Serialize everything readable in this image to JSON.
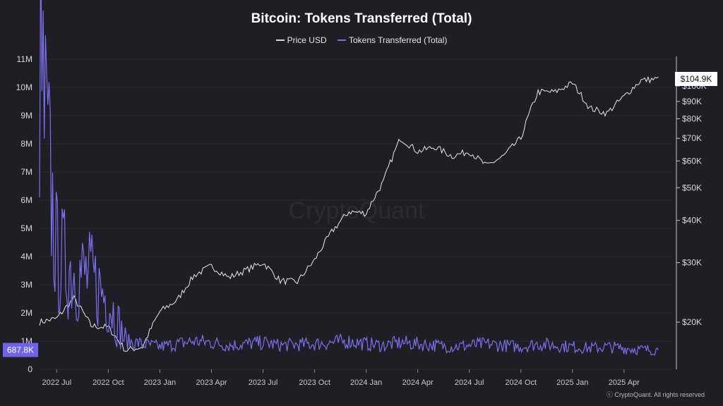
{
  "chart_data": {
    "type": "line",
    "title": "Bitcoin: Tokens Transferred (Total)",
    "legend_placement": "top-center",
    "grid": true,
    "watermark": "CryptoQuant",
    "footer": "ⓒ CryptoQuant. All rights reserved",
    "x_ticks": [
      "2022 Jul",
      "2022 Oct",
      "2023 Jan",
      "2023 Apr",
      "2023 Jul",
      "2023 Oct",
      "2024 Jan",
      "2024 Apr",
      "2024 Jul",
      "2024 Oct",
      "2025 Jan",
      "2025 Apr"
    ],
    "y_left": {
      "ticks": [
        "0",
        "1M",
        "2M",
        "3M",
        "4M",
        "5M",
        "6M",
        "7M",
        "8M",
        "9M",
        "10M",
        "11M"
      ],
      "range": [
        0,
        11000000
      ]
    },
    "y_right": {
      "scale": "log",
      "ticks": [
        "$20K",
        "$30K",
        "$40K",
        "$50K",
        "$60K",
        "$70K",
        "$80K",
        "$90K",
        "$100K"
      ],
      "range": [
        14500,
        120000
      ]
    },
    "series": [
      {
        "name": "Price USD",
        "axis": "right",
        "color": "#e8e8ec",
        "points": [
          [
            "2022 Jun",
            20000
          ],
          [
            "2022 Jul",
            20500
          ],
          [
            "2022 Aug",
            23500
          ],
          [
            "2022 Sep",
            19500
          ],
          [
            "2022 Oct",
            19300
          ],
          [
            "2022 Nov",
            16500
          ],
          [
            "2022 Dec",
            16900
          ],
          [
            "2023 Jan",
            21500
          ],
          [
            "2023 Feb",
            23200
          ],
          [
            "2023 Mar",
            27500
          ],
          [
            "2023 Apr",
            29300
          ],
          [
            "2023 May",
            27100
          ],
          [
            "2023 Jun",
            28500
          ],
          [
            "2023 Jul",
            30000
          ],
          [
            "2023 Aug",
            26500
          ],
          [
            "2023 Sep",
            26300
          ],
          [
            "2023 Oct",
            30500
          ],
          [
            "2023 Nov",
            37000
          ],
          [
            "2023 Dec",
            42500
          ],
          [
            "2024 Jan",
            42000
          ],
          [
            "2024 Feb",
            52000
          ],
          [
            "2024 Mar",
            70000
          ],
          [
            "2024 Apr",
            64000
          ],
          [
            "2024 May",
            66000
          ],
          [
            "2024 Jun",
            62000
          ],
          [
            "2024 Jul",
            64000
          ],
          [
            "2024 Aug",
            58000
          ],
          [
            "2024 Sep",
            62000
          ],
          [
            "2024 Oct",
            70000
          ],
          [
            "2024 Nov",
            96000
          ],
          [
            "2024 Dec",
            96000
          ],
          [
            "2025 Jan",
            102000
          ],
          [
            "2025 Feb",
            86000
          ],
          [
            "2025 Mar",
            83000
          ],
          [
            "2025 Apr",
            93000
          ],
          [
            "2025 May",
            104000
          ],
          [
            "2025 Jun",
            104900
          ]
        ],
        "last_value_label": "$104.9K"
      },
      {
        "name": "Tokens Transferred (Total)",
        "axis": "left",
        "color": "#7b6ff0",
        "points": [
          [
            "2022 Jun",
            10800000
          ],
          [
            "2022 Jul",
            4000000
          ],
          [
            "2022 Aug",
            3500000
          ],
          [
            "2022 Sep",
            3200000
          ],
          [
            "2022 Oct",
            2500000
          ],
          [
            "2022 Nov",
            1000000
          ],
          [
            "2022 Dec",
            900000
          ],
          [
            "2023 Jan",
            800000
          ],
          [
            "2023 Feb",
            900000
          ],
          [
            "2023 Mar",
            1000000
          ],
          [
            "2023 Apr",
            950000
          ],
          [
            "2023 May",
            850000
          ],
          [
            "2023 Jun",
            900000
          ],
          [
            "2023 Jul",
            950000
          ],
          [
            "2023 Aug",
            850000
          ],
          [
            "2023 Sep",
            880000
          ],
          [
            "2023 Oct",
            900000
          ],
          [
            "2023 Nov",
            950000
          ],
          [
            "2023 Dec",
            1000000
          ],
          [
            "2024 Jan",
            900000
          ],
          [
            "2024 Feb",
            850000
          ],
          [
            "2024 Mar",
            950000
          ],
          [
            "2024 Apr",
            900000
          ],
          [
            "2024 May",
            850000
          ],
          [
            "2024 Jun",
            800000
          ],
          [
            "2024 Jul",
            850000
          ],
          [
            "2024 Aug",
            900000
          ],
          [
            "2024 Sep",
            850000
          ],
          [
            "2024 Oct",
            800000
          ],
          [
            "2024 Nov",
            900000
          ],
          [
            "2024 Dec",
            850000
          ],
          [
            "2025 Jan",
            800000
          ],
          [
            "2025 Feb",
            750000
          ],
          [
            "2025 Mar",
            800000
          ],
          [
            "2025 Apr",
            750000
          ],
          [
            "2025 May",
            700000
          ],
          [
            "2025 Jun",
            687800
          ]
        ],
        "last_value_label": "687.8K"
      }
    ]
  }
}
